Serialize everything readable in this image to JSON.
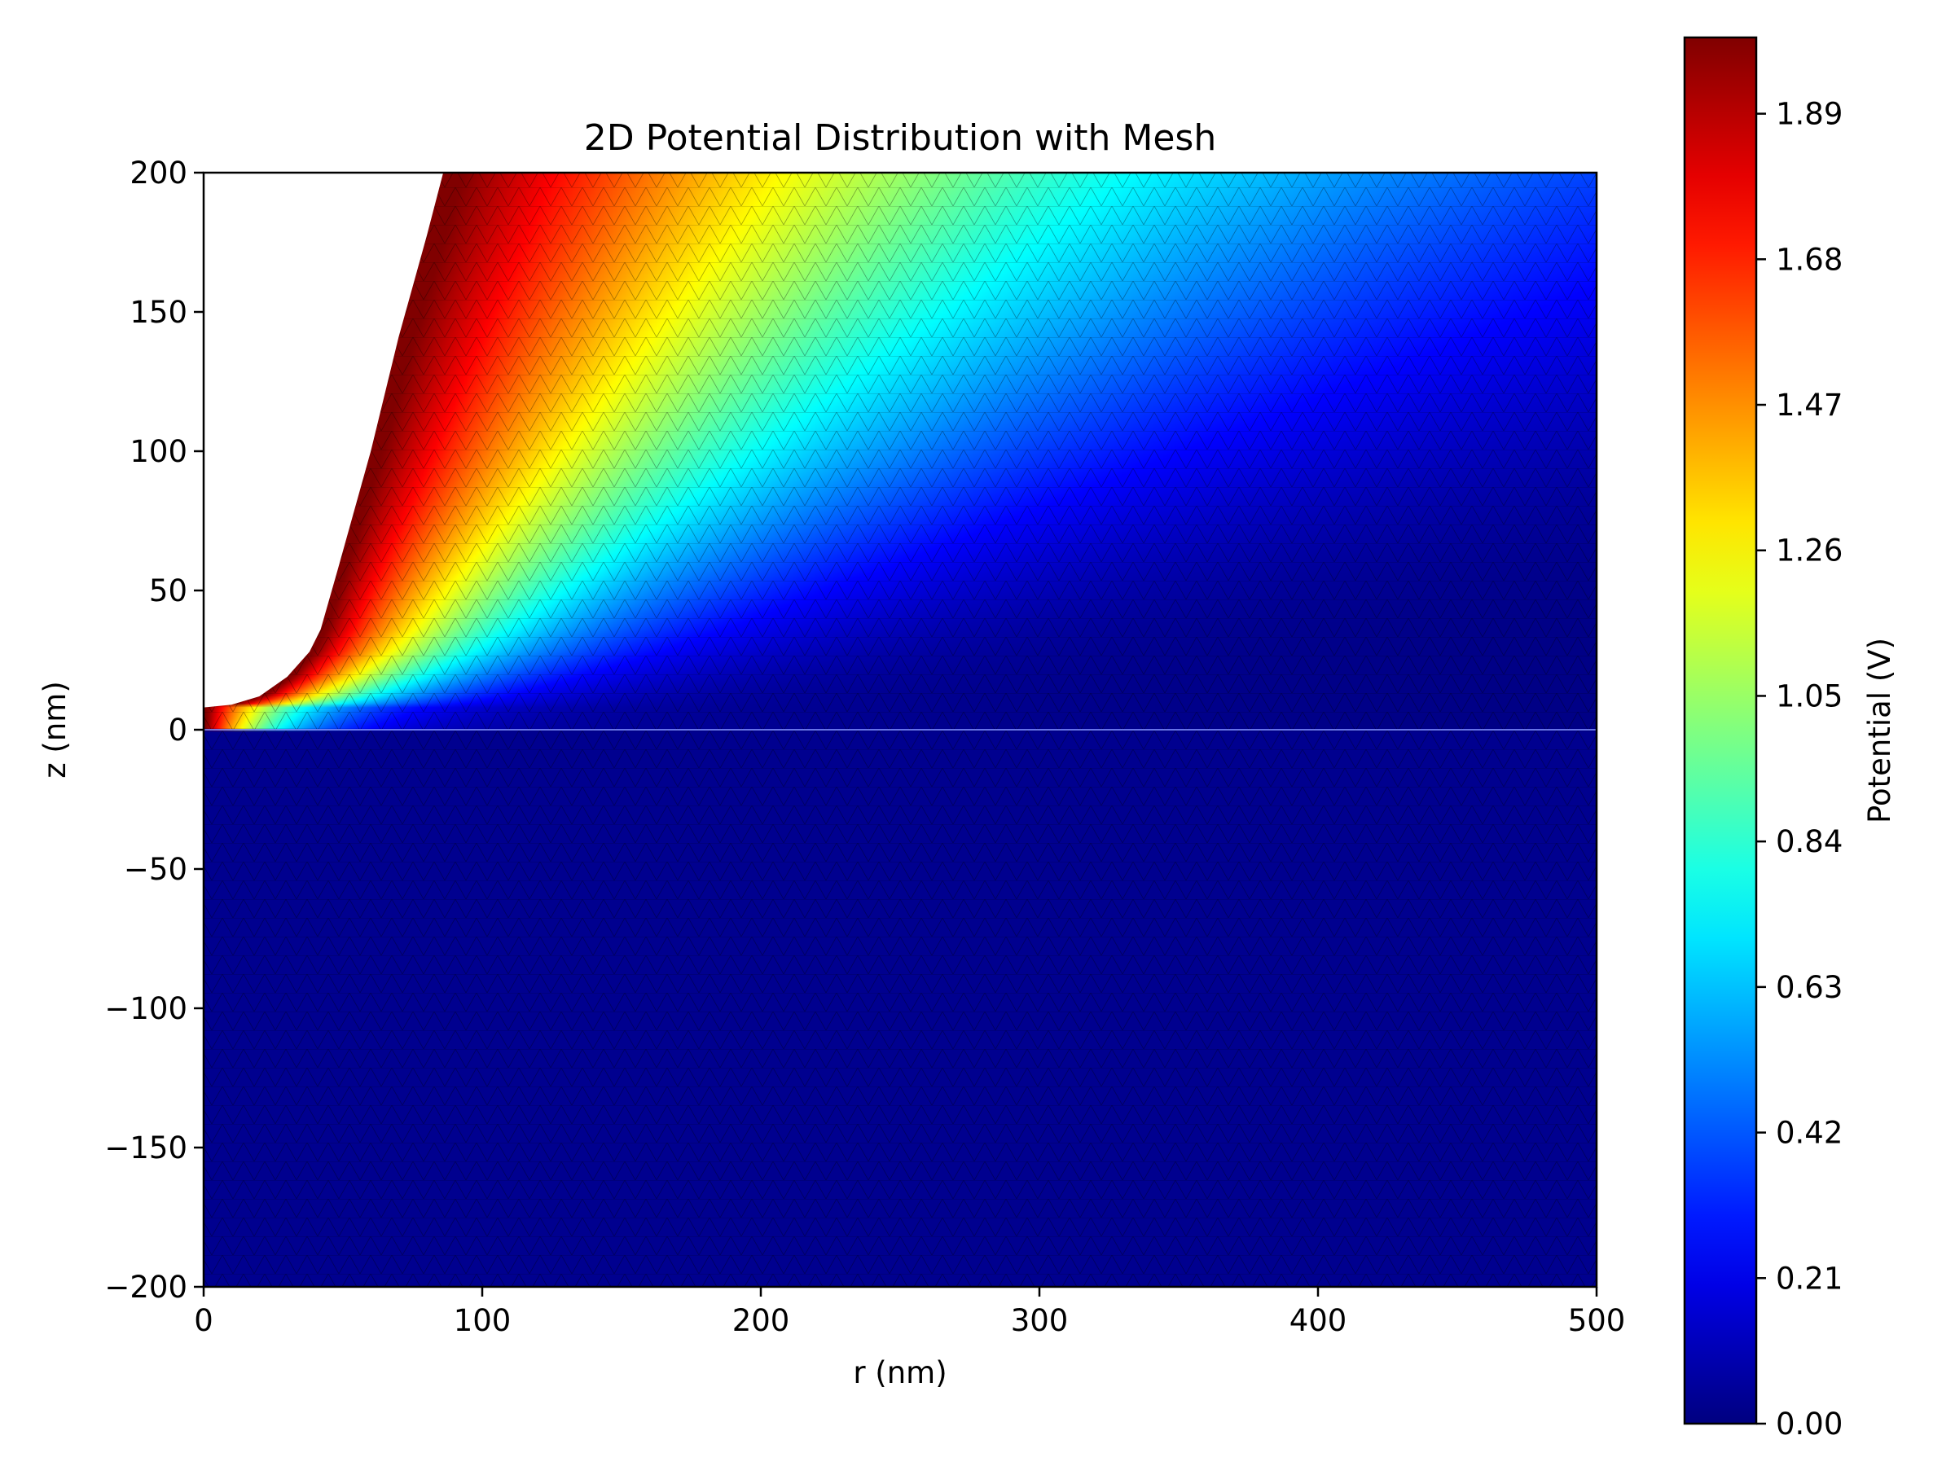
{
  "chart_data": {
    "type": "heatmap",
    "title": "2D Potential Distribution with Mesh",
    "xlabel": "r (nm)",
    "ylabel": "z (nm)",
    "xlim": [
      0,
      500
    ],
    "ylim": [
      -200,
      200
    ],
    "x_ticks": [
      0,
      100,
      200,
      300,
      400,
      500
    ],
    "x_tick_labels": [
      "0",
      "100",
      "200",
      "300",
      "400",
      "500"
    ],
    "y_ticks": [
      200,
      150,
      100,
      50,
      0,
      -50,
      -100,
      -150,
      -200
    ],
    "y_tick_labels": [
      "200",
      "150",
      "100",
      "50",
      "0",
      "−50",
      "−100",
      "−150",
      "−200"
    ],
    "colormap": "jet",
    "grid": false,
    "mesh_overlay": true,
    "tip_boundary": {
      "r": [
        0,
        10,
        20,
        30,
        38,
        42,
        48,
        60,
        70,
        80,
        86
      ],
      "z": [
        8,
        9,
        12,
        19,
        28,
        36,
        57,
        100,
        141,
        177,
        200
      ]
    },
    "colorbar": {
      "label": "Potential (V)",
      "min": 0,
      "max": 2.0,
      "ticks": [
        0.0,
        0.21,
        0.42,
        0.63,
        0.84,
        1.05,
        1.26,
        1.47,
        1.68,
        1.89
      ],
      "tick_labels": [
        "0.00",
        "0.21",
        "0.42",
        "0.63",
        "0.84",
        "1.05",
        "1.26",
        "1.47",
        "1.68",
        "1.89"
      ]
    }
  }
}
